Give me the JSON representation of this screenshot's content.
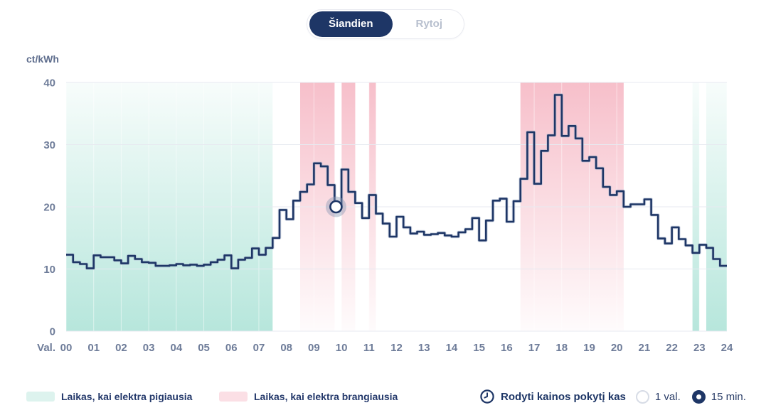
{
  "toggle": {
    "today_label": "Šiandien",
    "tomorrow_label": "Rytoj"
  },
  "chart_data": {
    "type": "step-line",
    "unit_label": "ct/kWh",
    "x_axis_label": "Val.",
    "x_ticks": [
      "00",
      "01",
      "02",
      "03",
      "04",
      "05",
      "06",
      "07",
      "08",
      "09",
      "10",
      "11",
      "12",
      "13",
      "14",
      "15",
      "16",
      "17",
      "18",
      "19",
      "20",
      "21",
      "22",
      "23",
      "24"
    ],
    "y_ticks": [
      0,
      10,
      20,
      30,
      40
    ],
    "ylim": [
      0,
      40
    ],
    "interval_minutes": 15,
    "values": [
      12.3,
      11.1,
      10.8,
      10.1,
      12.2,
      11.9,
      11.9,
      11.4,
      10.9,
      12.1,
      11.6,
      11.1,
      11.0,
      10.5,
      10.5,
      10.6,
      10.8,
      10.6,
      10.7,
      10.5,
      10.7,
      11.1,
      11.5,
      12.2,
      10.1,
      11.5,
      11.8,
      13.3,
      12.3,
      13.4,
      15.0,
      19.5,
      18.0,
      21.0,
      22.4,
      23.6,
      27.0,
      26.5,
      23.5,
      20.0,
      26.0,
      22.4,
      20.6,
      18.2,
      21.9,
      18.9,
      17.3,
      15.2,
      18.4,
      16.7,
      15.7,
      16.0,
      15.5,
      15.6,
      15.8,
      15.4,
      15.2,
      15.9,
      16.4,
      18.2,
      14.6,
      17.8,
      21.0,
      21.3,
      17.6,
      20.9,
      24.5,
      32.0,
      23.7,
      29.0,
      31.5,
      38.0,
      31.4,
      33.0,
      31.0,
      27.4,
      28.0,
      26.2,
      23.2,
      21.9,
      22.5,
      20.0,
      20.4,
      20.4,
      21.2,
      18.7,
      14.9,
      14.1,
      16.7,
      14.8,
      13.8,
      12.6,
      13.9,
      13.4,
      11.6,
      10.5
    ],
    "marker": {
      "time": "09:45",
      "index": 39,
      "value": 20.0
    },
    "cheap_regions": [
      {
        "start": "00:00",
        "end": "07:30"
      },
      {
        "start": "22:45",
        "end": "23:00"
      },
      {
        "start": "23:15",
        "end": "24:00"
      }
    ],
    "expensive_regions": [
      {
        "start": "08:30",
        "end": "09:45"
      },
      {
        "start": "10:00",
        "end": "10:30"
      },
      {
        "start": "11:00",
        "end": "11:15"
      },
      {
        "start": "16:30",
        "end": "20:15"
      }
    ],
    "colors": {
      "line": "#1e3666",
      "line_halo": "#a8b6cd",
      "cheap_band": "#b3e5da",
      "expensive_band": "#f5b4c1",
      "grid": "#e7eaf0",
      "axis_text": "#6e7c99",
      "marker_halo": "#8e9bb5"
    },
    "legend_position": "bottom",
    "grid": true
  },
  "legend": {
    "cheap_label": "Laikas, kai elektra pigiausia",
    "cheap_color": "#ddf3ee",
    "expensive_label": "Laikas, kai elektra brangiausia",
    "expensive_color": "#fbdfe5"
  },
  "controls": {
    "label": "Rodyti kainos pokytį kas",
    "options": [
      {
        "label": "1 val.",
        "selected": false
      },
      {
        "label": "15 min.",
        "selected": true
      }
    ]
  }
}
